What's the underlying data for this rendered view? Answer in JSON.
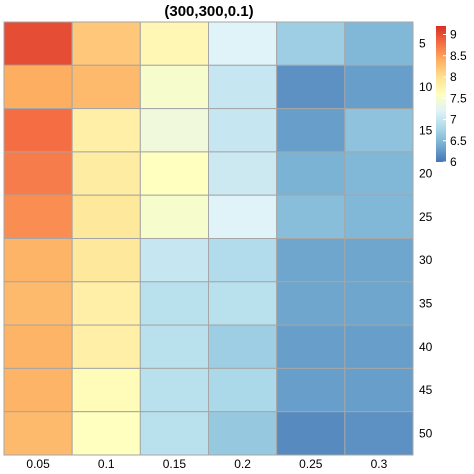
{
  "chart_data": {
    "type": "heatmap",
    "title": "(300,300,0.1)",
    "columns": [
      "0.05",
      "0.1",
      "0.15",
      "0.2",
      "0.25",
      "0.3"
    ],
    "rows": [
      "5",
      "10",
      "15",
      "20",
      "25",
      "30",
      "35",
      "40",
      "45",
      "50"
    ],
    "values": [
      [
        9.0,
        8.2,
        7.7,
        7.2,
        6.7,
        6.5
      ],
      [
        8.4,
        8.3,
        7.5,
        7.0,
        6.2,
        6.3
      ],
      [
        8.8,
        7.8,
        7.4,
        7.0,
        6.3,
        6.6
      ],
      [
        8.7,
        7.85,
        7.6,
        7.05,
        6.45,
        6.5
      ],
      [
        8.6,
        7.9,
        7.5,
        7.2,
        6.55,
        6.5
      ],
      [
        8.35,
        7.9,
        7.0,
        6.85,
        6.35,
        6.35
      ],
      [
        8.3,
        7.8,
        6.9,
        6.9,
        6.35,
        6.35
      ],
      [
        8.35,
        7.8,
        6.9,
        6.7,
        6.3,
        6.3
      ],
      [
        8.35,
        7.65,
        6.9,
        6.8,
        6.3,
        6.3
      ],
      [
        8.3,
        7.6,
        6.9,
        6.65,
        6.15,
        6.2
      ]
    ],
    "colorbar": {
      "range": [
        6,
        9.2
      ],
      "ticks": [
        "6",
        "6.5",
        "7",
        "7.5",
        "8",
        "8.5",
        "9"
      ],
      "colors": [
        "#4575b4",
        "#74add1",
        "#abd9e9",
        "#e0f3f8",
        "#ffffbf",
        "#fee090",
        "#fdae61",
        "#f46d43",
        "#d73027"
      ]
    },
    "grid": true,
    "legend": "right"
  }
}
